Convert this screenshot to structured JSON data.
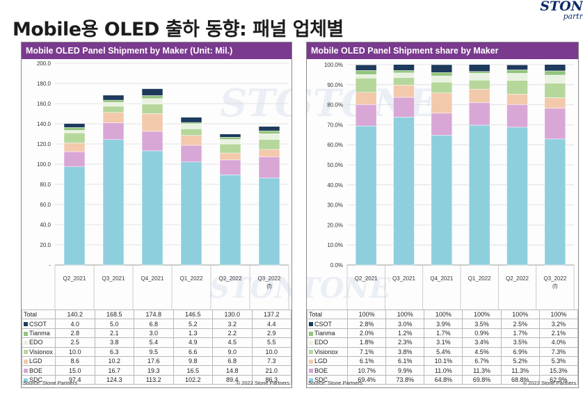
{
  "page_title": "Mobile용 OLED 출하 동향: 패널 업체별",
  "brand": {
    "line1": "STON",
    "line2": "partr",
    "watermark": "STONE"
  },
  "colors": {
    "header": "#7a3a8e",
    "series": [
      "#8ecfde",
      "#d8a7d6",
      "#f3c9ac",
      "#b6d79b",
      "#e9f2e0",
      "#93c47d",
      "#1e3a5c"
    ]
  },
  "chart_data": [
    {
      "type": "bar",
      "stacked": true,
      "title": "Mobile OLED Panel Shipment by Maker (Unit: Mil.)",
      "categories": [
        "Q2_2021",
        "Q3_2021",
        "Q4_2021",
        "Q1_2022",
        "Q2_2022",
        "Q3_2022"
      ],
      "category_sub": [
        "",
        "",
        "",
        "",
        "",
        "(f)"
      ],
      "ylim": [
        0,
        200
      ],
      "yticks": [
        "-",
        "20.0",
        "40.0",
        "60.0",
        "80.0",
        "100.0",
        "120.0",
        "140.0",
        "160.0",
        "180.0",
        "200.0"
      ],
      "total_label": "Total",
      "totals": [
        "140.2",
        "168.5",
        "174.8",
        "146.5",
        "130.0",
        "137.2"
      ],
      "series": [
        {
          "name": "SDC",
          "values": [
            97.4,
            124.3,
            113.2,
            102.2,
            89.4,
            86.3
          ],
          "labels": [
            "97.4",
            "124.3",
            "113.2",
            "102.2",
            "89.4",
            "86.3"
          ]
        },
        {
          "name": "BOE",
          "values": [
            15.0,
            16.7,
            19.3,
            16.5,
            14.8,
            21.0
          ],
          "labels": [
            "15.0",
            "16.7",
            "19.3",
            "16.5",
            "14.8",
            "21.0"
          ]
        },
        {
          "name": "LGD",
          "values": [
            8.6,
            10.2,
            17.6,
            9.8,
            6.8,
            7.3
          ],
          "labels": [
            "8.6",
            "10.2",
            "17.6",
            "9.8",
            "6.8",
            "7.3"
          ]
        },
        {
          "name": "Visionox",
          "values": [
            10.0,
            6.3,
            9.5,
            6.6,
            9.0,
            10.0
          ],
          "labels": [
            "10.0",
            "6.3",
            "9.5",
            "6.6",
            "9.0",
            "10.0"
          ]
        },
        {
          "name": "EDO",
          "values": [
            2.5,
            3.8,
            5.4,
            4.9,
            4.5,
            5.5
          ],
          "labels": [
            "2.5",
            "3.8",
            "5.4",
            "4.9",
            "4.5",
            "5.5"
          ]
        },
        {
          "name": "Tianma",
          "values": [
            2.8,
            2.1,
            3.0,
            1.3,
            2.2,
            2.9
          ],
          "labels": [
            "2.8",
            "2.1",
            "3.0",
            "1.3",
            "2.2",
            "2.9"
          ]
        },
        {
          "name": "CSOT",
          "values": [
            4.0,
            5.0,
            6.8,
            5.2,
            3.2,
            4.4
          ],
          "labels": [
            "4.0",
            "5.0",
            "6.8",
            "5.2",
            "3.2",
            "4.4"
          ]
        }
      ],
      "source": "Source: Stone Partners",
      "copyright": "© 2022 Stone Partners"
    },
    {
      "type": "bar",
      "stacked": true,
      "title": "Mobile OLED Panel Shipment share by Maker",
      "categories": [
        "Q2_2021",
        "Q3_2021",
        "Q4_2021",
        "Q1_2022",
        "Q2_2022",
        "Q3_2022"
      ],
      "category_sub": [
        "",
        "",
        "",
        "",
        "",
        "(f)"
      ],
      "ylim": [
        0,
        100
      ],
      "yticks": [
        "0.0%",
        "10.0%",
        "20.0%",
        "30.0%",
        "40.0%",
        "50.0%",
        "60.0%",
        "70.0%",
        "80.0%",
        "90.0%",
        "100.0%"
      ],
      "total_label": "Total",
      "totals": [
        "100%",
        "100%",
        "100%",
        "100%",
        "100%",
        "100%"
      ],
      "series": [
        {
          "name": "SDC",
          "values": [
            69.4,
            73.8,
            64.8,
            69.8,
            68.8,
            62.9
          ],
          "labels": [
            "69.4%",
            "73.8%",
            "64.8%",
            "69.8%",
            "68.8%",
            "62.9%"
          ]
        },
        {
          "name": "BOE",
          "values": [
            10.7,
            9.9,
            11.0,
            11.3,
            11.3,
            15.3
          ],
          "labels": [
            "10.7%",
            "9.9%",
            "11.0%",
            "11.3%",
            "11.3%",
            "15.3%"
          ]
        },
        {
          "name": "LGD",
          "values": [
            6.1,
            6.1,
            10.1,
            6.7,
            5.2,
            5.3
          ],
          "labels": [
            "6.1%",
            "6.1%",
            "10.1%",
            "6.7%",
            "5.2%",
            "5.3%"
          ]
        },
        {
          "name": "Visionox",
          "values": [
            7.1,
            3.8,
            5.4,
            4.5,
            6.9,
            7.3
          ],
          "labels": [
            "7.1%",
            "3.8%",
            "5.4%",
            "4.5%",
            "6.9%",
            "7.3%"
          ]
        },
        {
          "name": "EDO",
          "values": [
            1.8,
            2.3,
            3.1,
            3.4,
            3.5,
            4.0
          ],
          "labels": [
            "1.8%",
            "2.3%",
            "3.1%",
            "3.4%",
            "3.5%",
            "4.0%"
          ]
        },
        {
          "name": "Tianma",
          "values": [
            2.0,
            1.2,
            1.7,
            0.9,
            1.7,
            2.1
          ],
          "labels": [
            "2.0%",
            "1.2%",
            "1.7%",
            "0.9%",
            "1.7%",
            "2.1%"
          ]
        },
        {
          "name": "CSOT",
          "values": [
            2.8,
            3.0,
            3.9,
            3.5,
            2.5,
            3.2
          ],
          "labels": [
            "2.8%",
            "3.0%",
            "3.9%",
            "3.5%",
            "2.5%",
            "3.2%"
          ]
        }
      ],
      "source": "Source: Stone Partners",
      "copyright": "© 2022 Stone Partners"
    }
  ]
}
